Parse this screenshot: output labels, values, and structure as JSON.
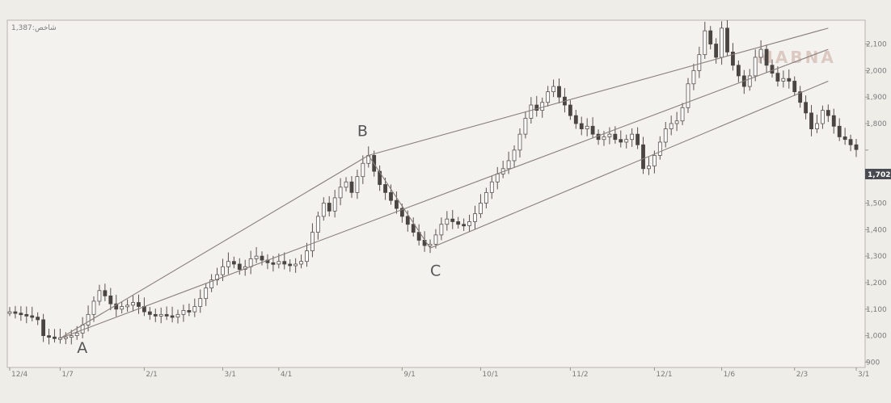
{
  "chart_data": {
    "type": "candlestick",
    "corner_label": "1,387:شاخص",
    "watermark": "MABNA",
    "y_axis": {
      "ticks": [
        900,
        1000,
        1100,
        1200,
        1300,
        1400,
        1500,
        1600,
        1700,
        1800,
        1900,
        2000,
        2100
      ],
      "tick_labels": [
        "900",
        "1,000",
        "1,100",
        "1,200",
        "1,300",
        "1,400",
        "1,500",
        "1,600",
        "",
        "1,800",
        "1,900",
        "2,000",
        "2,100"
      ],
      "range": [
        880,
        2190
      ],
      "last_price_label": "1,702",
      "last_price_value": 1702
    },
    "x_axis": {
      "tick_labels": [
        "12/4",
        "1/7",
        "2/1",
        "3/1",
        "4/1",
        "9/1",
        "10/1",
        "11/2",
        "12/1",
        "1/6",
        "2/3",
        "3/1"
      ]
    },
    "points": [
      {
        "label": "A",
        "value": 990
      },
      {
        "label": "B",
        "value": 1680
      },
      {
        "label": "C",
        "value": 1330
      }
    ],
    "series": [
      {
        "x": 0,
        "y": 1090
      },
      {
        "x": 1,
        "y": 1085
      },
      {
        "x": 2,
        "y": 1080
      },
      {
        "x": 3,
        "y": 1075
      },
      {
        "x": 4,
        "y": 1070
      },
      {
        "x": 5,
        "y": 1060
      },
      {
        "x": 6,
        "y": 1000
      },
      {
        "x": 7,
        "y": 995
      },
      {
        "x": 8,
        "y": 990
      },
      {
        "x": 9,
        "y": 992
      },
      {
        "x": 10,
        "y": 995
      },
      {
        "x": 11,
        "y": 1000
      },
      {
        "x": 12,
        "y": 1010
      },
      {
        "x": 13,
        "y": 1040
      },
      {
        "x": 14,
        "y": 1080
      },
      {
        "x": 15,
        "y": 1130
      },
      {
        "x": 16,
        "y": 1170
      },
      {
        "x": 17,
        "y": 1150
      },
      {
        "x": 18,
        "y": 1120
      },
      {
        "x": 19,
        "y": 1100
      },
      {
        "x": 20,
        "y": 1110
      },
      {
        "x": 21,
        "y": 1115
      },
      {
        "x": 22,
        "y": 1125
      },
      {
        "x": 23,
        "y": 1110
      },
      {
        "x": 24,
        "y": 1090
      },
      {
        "x": 25,
        "y": 1080
      },
      {
        "x": 26,
        "y": 1075
      },
      {
        "x": 27,
        "y": 1080
      },
      {
        "x": 28,
        "y": 1075
      },
      {
        "x": 29,
        "y": 1070
      },
      {
        "x": 30,
        "y": 1080
      },
      {
        "x": 31,
        "y": 1095
      },
      {
        "x": 32,
        "y": 1090
      },
      {
        "x": 33,
        "y": 1110
      },
      {
        "x": 34,
        "y": 1140
      },
      {
        "x": 35,
        "y": 1180
      },
      {
        "x": 36,
        "y": 1210
      },
      {
        "x": 37,
        "y": 1230
      },
      {
        "x": 38,
        "y": 1260
      },
      {
        "x": 39,
        "y": 1280
      },
      {
        "x": 40,
        "y": 1270
      },
      {
        "x": 41,
        "y": 1250
      },
      {
        "x": 42,
        "y": 1260
      },
      {
        "x": 43,
        "y": 1290
      },
      {
        "x": 44,
        "y": 1300
      },
      {
        "x": 45,
        "y": 1285
      },
      {
        "x": 46,
        "y": 1275
      },
      {
        "x": 47,
        "y": 1270
      },
      {
        "x": 48,
        "y": 1280
      },
      {
        "x": 49,
        "y": 1270
      },
      {
        "x": 50,
        "y": 1265
      },
      {
        "x": 51,
        "y": 1270
      },
      {
        "x": 52,
        "y": 1280
      },
      {
        "x": 53,
        "y": 1320
      },
      {
        "x": 54,
        "y": 1390
      },
      {
        "x": 55,
        "y": 1450
      },
      {
        "x": 56,
        "y": 1500
      },
      {
        "x": 57,
        "y": 1470
      },
      {
        "x": 58,
        "y": 1520
      },
      {
        "x": 59,
        "y": 1560
      },
      {
        "x": 60,
        "y": 1580
      },
      {
        "x": 61,
        "y": 1540
      },
      {
        "x": 62,
        "y": 1600
      },
      {
        "x": 63,
        "y": 1650
      },
      {
        "x": 64,
        "y": 1680
      },
      {
        "x": 65,
        "y": 1620
      },
      {
        "x": 66,
        "y": 1570
      },
      {
        "x": 67,
        "y": 1540
      },
      {
        "x": 68,
        "y": 1510
      },
      {
        "x": 69,
        "y": 1480
      },
      {
        "x": 70,
        "y": 1450
      },
      {
        "x": 71,
        "y": 1420
      },
      {
        "x": 72,
        "y": 1390
      },
      {
        "x": 73,
        "y": 1360
      },
      {
        "x": 74,
        "y": 1340
      },
      {
        "x": 75,
        "y": 1345
      },
      {
        "x": 76,
        "y": 1380
      },
      {
        "x": 77,
        "y": 1420
      },
      {
        "x": 78,
        "y": 1440
      },
      {
        "x": 79,
        "y": 1430
      },
      {
        "x": 80,
        "y": 1420
      },
      {
        "x": 81,
        "y": 1415
      },
      {
        "x": 82,
        "y": 1430
      },
      {
        "x": 83,
        "y": 1460
      },
      {
        "x": 84,
        "y": 1500
      },
      {
        "x": 85,
        "y": 1540
      },
      {
        "x": 86,
        "y": 1580
      },
      {
        "x": 87,
        "y": 1610
      },
      {
        "x": 88,
        "y": 1630
      },
      {
        "x": 89,
        "y": 1660
      },
      {
        "x": 90,
        "y": 1700
      },
      {
        "x": 91,
        "y": 1760
      },
      {
        "x": 92,
        "y": 1820
      },
      {
        "x": 93,
        "y": 1870
      },
      {
        "x": 94,
        "y": 1850
      },
      {
        "x": 95,
        "y": 1880
      },
      {
        "x": 96,
        "y": 1920
      },
      {
        "x": 97,
        "y": 1940
      },
      {
        "x": 98,
        "y": 1900
      },
      {
        "x": 99,
        "y": 1870
      },
      {
        "x": 100,
        "y": 1830
      },
      {
        "x": 101,
        "y": 1800
      },
      {
        "x": 102,
        "y": 1780
      },
      {
        "x": 103,
        "y": 1790
      },
      {
        "x": 104,
        "y": 1760
      },
      {
        "x": 105,
        "y": 1740
      },
      {
        "x": 106,
        "y": 1750
      },
      {
        "x": 107,
        "y": 1760
      },
      {
        "x": 108,
        "y": 1740
      },
      {
        "x": 109,
        "y": 1730
      },
      {
        "x": 110,
        "y": 1740
      },
      {
        "x": 111,
        "y": 1760
      },
      {
        "x": 112,
        "y": 1720
      },
      {
        "x": 113,
        "y": 1630
      },
      {
        "x": 114,
        "y": 1640
      },
      {
        "x": 115,
        "y": 1680
      },
      {
        "x": 116,
        "y": 1730
      },
      {
        "x": 117,
        "y": 1780
      },
      {
        "x": 118,
        "y": 1800
      },
      {
        "x": 119,
        "y": 1810
      },
      {
        "x": 120,
        "y": 1860
      },
      {
        "x": 121,
        "y": 1950
      },
      {
        "x": 122,
        "y": 2000
      },
      {
        "x": 123,
        "y": 2060
      },
      {
        "x": 124,
        "y": 2150
      },
      {
        "x": 125,
        "y": 2100
      },
      {
        "x": 126,
        "y": 2050
      },
      {
        "x": 127,
        "y": 2160
      },
      {
        "x": 128,
        "y": 2070
      },
      {
        "x": 129,
        "y": 2020
      },
      {
        "x": 130,
        "y": 1980
      },
      {
        "x": 131,
        "y": 1940
      },
      {
        "x": 132,
        "y": 1980
      },
      {
        "x": 133,
        "y": 2050
      },
      {
        "x": 134,
        "y": 2080
      },
      {
        "x": 135,
        "y": 2020
      },
      {
        "x": 136,
        "y": 1990
      },
      {
        "x": 137,
        "y": 1960
      },
      {
        "x": 138,
        "y": 1970
      },
      {
        "x": 139,
        "y": 1960
      },
      {
        "x": 140,
        "y": 1920
      },
      {
        "x": 141,
        "y": 1880
      },
      {
        "x": 142,
        "y": 1840
      },
      {
        "x": 143,
        "y": 1780
      },
      {
        "x": 144,
        "y": 1800
      },
      {
        "x": 145,
        "y": 1850
      },
      {
        "x": 146,
        "y": 1830
      },
      {
        "x": 147,
        "y": 1790
      },
      {
        "x": 148,
        "y": 1750
      },
      {
        "x": 149,
        "y": 1740
      },
      {
        "x": 150,
        "y": 1720
      },
      {
        "x": 151,
        "y": 1702
      }
    ],
    "trendlines": [
      {
        "name": "A-B",
        "from": {
          "x": 9,
          "y": 990
        },
        "to": {
          "x": 64,
          "y": 1680
        }
      },
      {
        "name": "upper-channel",
        "from": {
          "x": 64,
          "y": 1680
        },
        "to": {
          "x": 146,
          "y": 2160
        }
      },
      {
        "name": "lower-channel",
        "from": {
          "x": 75,
          "y": 1330
        },
        "to": {
          "x": 146,
          "y": 1960
        }
      },
      {
        "name": "middle-line",
        "from": {
          "x": 9,
          "y": 990
        },
        "to": {
          "x": 146,
          "y": 2080
        }
      },
      {
        "name": "B-C",
        "from": {
          "x": 64,
          "y": 1680
        },
        "to": {
          "x": 75,
          "y": 1330
        }
      }
    ]
  }
}
